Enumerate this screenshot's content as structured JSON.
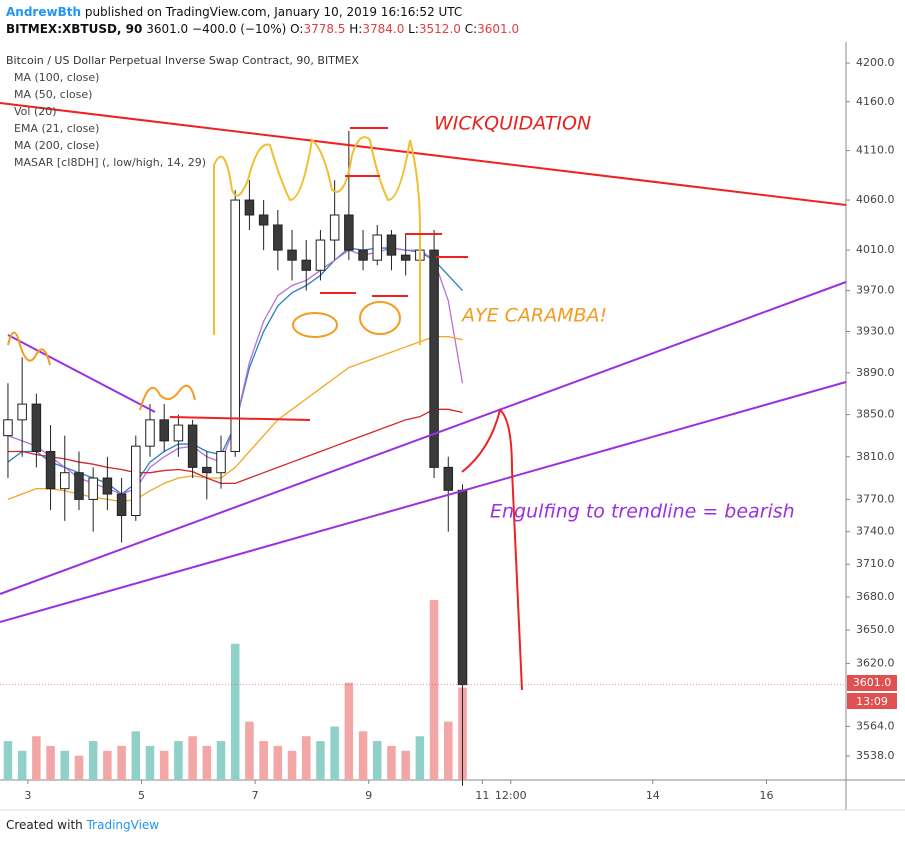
{
  "header": {
    "author": "AndrewBth",
    "published": "published on TradingView.com, January 10, 2019 16:16:52 UTC",
    "symbol": "BITMEX:XBTUSD, 90",
    "last": "3601.0",
    "change": "−400.0 (−10%)",
    "o_label": "O:",
    "open": "3778.5",
    "h_label": "H:",
    "high": "3784.0",
    "l_label": "L:",
    "low": "3512.0",
    "c_label": "C:",
    "close": "3601.0"
  },
  "chart_data": {
    "type": "candlestick",
    "title": "Bitcoin / US Dollar Perpetual Inverse Swap Contract, 90, BITMEX",
    "indicators": [
      "MA (100, close)",
      "MA (50, close)",
      "Vol (20)",
      "EMA (21, close)",
      "MA (200, close)",
      "MASAR [cI8DH] (, low/high, 14, 29)"
    ],
    "log_scale": true,
    "grid": false,
    "xlim": [
      2.51,
      17.4
    ],
    "xticks": [
      3,
      5,
      7,
      9,
      11,
      {
        "value": 11.5,
        "label": "12:00"
      },
      14,
      16
    ],
    "ylim": [
      3517,
      4222
    ],
    "yticks": [
      {
        "value": 4200,
        "label": "4200.0"
      },
      {
        "value": 4160,
        "label": "4160.0"
      },
      {
        "value": 4110,
        "label": "4110.0"
      },
      {
        "value": 4060,
        "label": "4060.0"
      },
      {
        "value": 4010,
        "label": "4010.0"
      },
      {
        "value": 3970,
        "label": "3970.0"
      },
      {
        "value": 3930,
        "label": "3930.0"
      },
      {
        "value": 3890,
        "label": "3890.0"
      },
      {
        "value": 3850,
        "label": "3850.0"
      },
      {
        "value": 3810,
        "label": "3810.0"
      },
      {
        "value": 3770,
        "label": "3770.0"
      },
      {
        "value": 3740,
        "label": "3740.0"
      },
      {
        "value": 3710,
        "label": "3710.0"
      },
      {
        "value": 3680,
        "label": "3680.0"
      },
      {
        "value": 3650,
        "label": "3650.0"
      },
      {
        "value": 3620,
        "label": "3620.0"
      },
      {
        "value": 3564,
        "label": "3564.0"
      },
      {
        "value": 3538,
        "label": "3538.0"
      }
    ],
    "last_price": {
      "value": 3601,
      "label": "3601.0"
    },
    "countdown": "13:09",
    "up_color": "#ffffff",
    "down_color": "#3a3a3a",
    "wick_color": "#222222",
    "volume_up_color": "#8fd1c8",
    "volume_down_color": "#f2a6a6",
    "x": [
      2.65,
      2.9,
      3.15,
      3.4,
      3.65,
      3.9,
      4.15,
      4.4,
      4.65,
      4.9,
      5.15,
      5.4,
      5.65,
      5.9,
      6.15,
      6.4,
      6.65,
      6.9,
      7.15,
      7.4,
      7.65,
      7.9,
      8.15,
      8.4,
      8.65,
      8.9,
      9.15,
      9.4,
      9.65,
      9.9,
      10.15,
      10.4,
      10.65
    ],
    "open": [
      3830,
      3845,
      3860,
      3815,
      3780,
      3795,
      3770,
      3790,
      3775,
      3755,
      3820,
      3845,
      3825,
      3840,
      3800,
      3795,
      3815,
      4060,
      4045,
      4035,
      4010,
      4000,
      3990,
      4020,
      4045,
      4010,
      4000,
      4025,
      4005,
      4000,
      4010,
      3800,
      3778.5
    ],
    "high": [
      3880,
      3905,
      3870,
      3840,
      3830,
      3815,
      3800,
      3810,
      3790,
      3830,
      3860,
      3860,
      3850,
      3845,
      3815,
      3830,
      4070,
      4080,
      4060,
      4050,
      4030,
      4020,
      4030,
      4080,
      4130,
      4030,
      4035,
      4030,
      4025,
      4020,
      4030,
      3810,
      3784
    ],
    "low": [
      3790,
      3810,
      3800,
      3760,
      3750,
      3760,
      3740,
      3760,
      3730,
      3750,
      3810,
      3815,
      3810,
      3790,
      3770,
      3780,
      3810,
      4030,
      4010,
      3990,
      3980,
      3970,
      3980,
      4000,
      4000,
      3990,
      3995,
      3990,
      3985,
      3990,
      3790,
      3740,
      3512
    ],
    "close": [
      3845,
      3860,
      3815,
      3780,
      3795,
      3770,
      3790,
      3775,
      3755,
      3820,
      3845,
      3825,
      3840,
      3800,
      3795,
      3815,
      4060,
      4045,
      4035,
      4010,
      4000,
      3990,
      4020,
      4045,
      4010,
      4000,
      4025,
      4005,
      4000,
      4010,
      3800,
      3778.5,
      3601
    ],
    "volume": [
      40,
      30,
      45,
      35,
      30,
      25,
      40,
      30,
      35,
      50,
      35,
      30,
      40,
      45,
      35,
      40,
      140,
      60,
      40,
      35,
      30,
      45,
      40,
      55,
      100,
      50,
      40,
      35,
      30,
      45,
      185,
      60,
      95
    ],
    "overlays": [
      {
        "color": "#2a7fc4",
        "values": [
          3805,
          3815,
          3815,
          3805,
          3800,
          3795,
          3790,
          3785,
          3775,
          3785,
          3805,
          3815,
          3822,
          3822,
          3815,
          3812,
          3840,
          3895,
          3930,
          3955,
          3968,
          3975,
          3985,
          4000,
          4012,
          4010,
          4012,
          4012,
          4010,
          4008,
          4000,
          3985,
          3970
        ]
      },
      {
        "color": "#b96fd6",
        "values": [
          3830,
          3825,
          3820,
          3810,
          3800,
          3790,
          3785,
          3780,
          3775,
          3780,
          3800,
          3810,
          3818,
          3820,
          3810,
          3805,
          3840,
          3900,
          3940,
          3965,
          3975,
          3980,
          3990,
          4000,
          4010,
          4005,
          4008,
          4012,
          4010,
          4010,
          4000,
          3960,
          3880
        ]
      },
      {
        "color": "#f5a623",
        "values": [
          3770,
          3775,
          3780,
          3780,
          3778,
          3775,
          3772,
          3770,
          3768,
          3770,
          3778,
          3785,
          3790,
          3792,
          3790,
          3790,
          3800,
          3815,
          3830,
          3845,
          3855,
          3865,
          3875,
          3885,
          3895,
          3900,
          3905,
          3910,
          3915,
          3920,
          3925,
          3925,
          3922
        ]
      },
      {
        "color": "#d62728",
        "values": [
          3815,
          3815,
          3812,
          3810,
          3808,
          3805,
          3803,
          3800,
          3798,
          3795,
          3795,
          3797,
          3798,
          3796,
          3790,
          3785,
          3785,
          3790,
          3795,
          3800,
          3805,
          3810,
          3815,
          3820,
          3825,
          3830,
          3835,
          3840,
          3845,
          3848,
          3855,
          3855,
          3852
        ]
      }
    ],
    "annotations": [
      {
        "text": "WICKQUIDATION",
        "color": "#e8221c"
      },
      {
        "text": "AYE CARAMBA!",
        "color": "#f39c1f"
      },
      {
        "text": "Engulfing to trendline = bearish",
        "color": "#9b30e0"
      }
    ]
  },
  "footer": {
    "created": "Created with",
    "brand": "TradingView"
  }
}
